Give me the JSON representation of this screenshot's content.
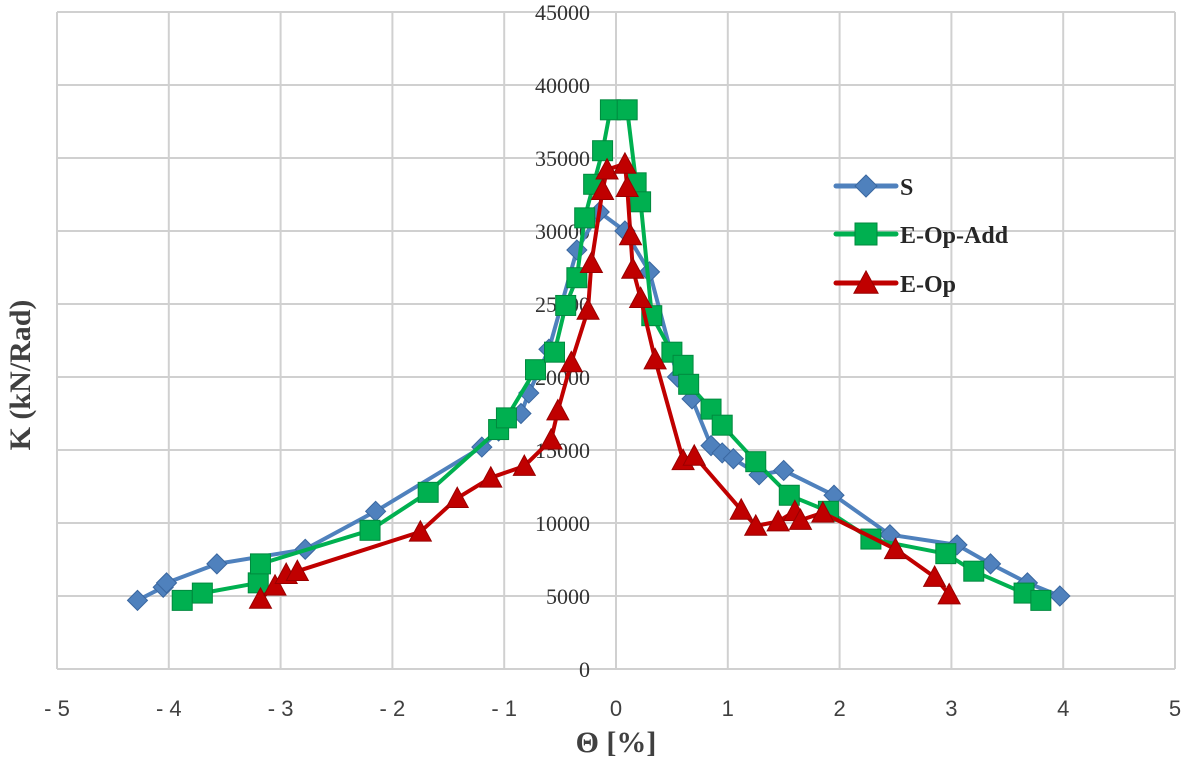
{
  "chart_data": {
    "type": "scatter",
    "title": "",
    "xlabel": "Θ [%]",
    "ylabel": "K (kN/Rad)",
    "xlim": [
      -5,
      5
    ],
    "ylim": [
      0,
      45000
    ],
    "grid": true,
    "legend_position": "upper right (inside plot, right of center)",
    "x_ticks": [
      -5,
      -4,
      -3,
      -2,
      -1,
      0,
      1,
      2,
      3,
      4,
      5
    ],
    "x_tick_labels": [
      "- 5",
      "- 4",
      "- 3",
      "- 2",
      "- 1",
      "0",
      "1",
      "2",
      "3",
      "4",
      "5"
    ],
    "y_ticks": [
      0,
      5000,
      10000,
      15000,
      20000,
      25000,
      30000,
      35000,
      40000,
      45000
    ],
    "y_tick_labels": [
      "0",
      "5000",
      "10000",
      "15000",
      "20000",
      "25000",
      "30000",
      "35000",
      "40000",
      "45000"
    ],
    "series": [
      {
        "name": "S",
        "color": "#4F81BD",
        "marker": "diamond",
        "points": [
          [
            -4.28,
            4700
          ],
          [
            -4.05,
            5600
          ],
          [
            -4.02,
            5900
          ],
          [
            -3.57,
            7200
          ],
          [
            -2.78,
            8200
          ],
          [
            -2.15,
            10800
          ],
          [
            -1.2,
            15200
          ],
          [
            -1.05,
            16300
          ],
          [
            -0.85,
            17500
          ],
          [
            -0.78,
            18900
          ],
          [
            -0.6,
            21900
          ],
          [
            -0.35,
            28700
          ],
          [
            -0.15,
            31300
          ],
          [
            0.08,
            30000
          ],
          [
            0.3,
            27200
          ],
          [
            0.55,
            20000
          ],
          [
            0.68,
            18500
          ],
          [
            0.85,
            15300
          ],
          [
            0.95,
            14800
          ],
          [
            1.05,
            14400
          ],
          [
            1.28,
            13300
          ],
          [
            1.5,
            13600
          ],
          [
            1.95,
            11900
          ],
          [
            2.45,
            9200
          ],
          [
            3.05,
            8500
          ],
          [
            3.35,
            7200
          ],
          [
            3.68,
            5900
          ],
          [
            3.97,
            5000
          ]
        ]
      },
      {
        "name": "E-Op-Add",
        "color": "#00B050",
        "marker": "square",
        "points": [
          [
            -3.88,
            4700
          ],
          [
            -3.7,
            5200
          ],
          [
            -3.2,
            5900
          ],
          [
            -3.18,
            7200
          ],
          [
            -2.2,
            9500
          ],
          [
            -1.68,
            12100
          ],
          [
            -1.05,
            16400
          ],
          [
            -0.98,
            17200
          ],
          [
            -0.72,
            20500
          ],
          [
            -0.55,
            21700
          ],
          [
            -0.45,
            24900
          ],
          [
            -0.35,
            26800
          ],
          [
            -0.28,
            30900
          ],
          [
            -0.2,
            33200
          ],
          [
            -0.12,
            35500
          ],
          [
            -0.05,
            38300
          ],
          [
            0.1,
            38300
          ],
          [
            0.18,
            33300
          ],
          [
            0.22,
            32000
          ],
          [
            0.32,
            24200
          ],
          [
            0.5,
            21700
          ],
          [
            0.6,
            20800
          ],
          [
            0.65,
            19500
          ],
          [
            0.85,
            17800
          ],
          [
            0.95,
            16700
          ],
          [
            1.25,
            14200
          ],
          [
            1.55,
            11900
          ],
          [
            1.9,
            10800
          ],
          [
            2.28,
            8900
          ],
          [
            2.95,
            7900
          ],
          [
            3.2,
            6700
          ],
          [
            3.65,
            5200
          ],
          [
            3.8,
            4700
          ]
        ]
      },
      {
        "name": "E-Op",
        "color": "#C00000",
        "marker": "triangle",
        "points": [
          [
            -3.18,
            4800
          ],
          [
            -3.05,
            5700
          ],
          [
            -2.95,
            6500
          ],
          [
            -2.85,
            6700
          ],
          [
            -1.75,
            9400
          ],
          [
            -1.42,
            11700
          ],
          [
            -1.12,
            13100
          ],
          [
            -0.82,
            13900
          ],
          [
            -0.58,
            15700
          ],
          [
            -0.52,
            17700
          ],
          [
            -0.4,
            21000
          ],
          [
            -0.25,
            24600
          ],
          [
            -0.22,
            27800
          ],
          [
            -0.12,
            32800
          ],
          [
            -0.08,
            34200
          ],
          [
            0.08,
            34600
          ],
          [
            0.1,
            33000
          ],
          [
            0.13,
            29700
          ],
          [
            0.15,
            27400
          ],
          [
            0.22,
            25400
          ],
          [
            0.35,
            21200
          ],
          [
            0.6,
            14300
          ],
          [
            0.7,
            14600
          ],
          [
            1.12,
            10900
          ],
          [
            1.25,
            9800
          ],
          [
            1.45,
            10100
          ],
          [
            1.6,
            10800
          ],
          [
            1.65,
            10200
          ],
          [
            1.85,
            10700
          ],
          [
            2.5,
            8200
          ],
          [
            2.85,
            6300
          ],
          [
            2.98,
            5100
          ]
        ]
      }
    ]
  },
  "colors": {
    "grid": "#D0D0D0",
    "background": "#FFFFFF"
  }
}
